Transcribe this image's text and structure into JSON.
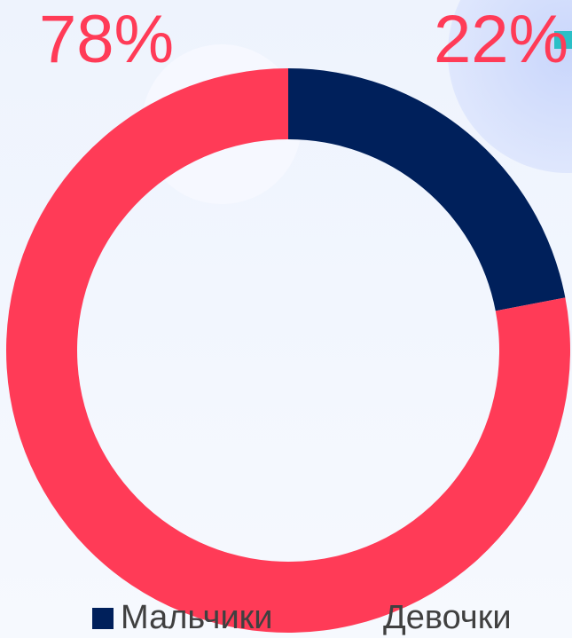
{
  "chart_data": {
    "type": "donut",
    "categories": [
      "Мальчики",
      "Девочки"
    ],
    "values": [
      22,
      78
    ],
    "value_labels": [
      "22%",
      "78%"
    ],
    "colors": [
      "#00205b",
      "#ff3b57"
    ],
    "legend": "bottom"
  }
}
